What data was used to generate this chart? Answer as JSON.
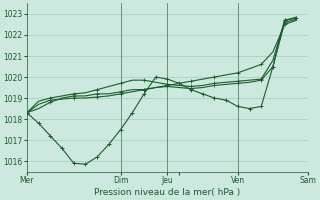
{
  "title": "Pression niveau de la mer( hPa )",
  "bg_color": "#cce8df",
  "grid_color": "#9ecfbf",
  "line_color": "#1a5c2a",
  "ylim": [
    1015.5,
    1023.5
  ],
  "yticks": [
    1016,
    1017,
    1018,
    1019,
    1020,
    1021,
    1022,
    1023
  ],
  "xlim": [
    0,
    24
  ],
  "xtick_pos": [
    0,
    8,
    12,
    13,
    18,
    24
  ],
  "xtick_lbl": [
    "Mer",
    "Dim",
    "Jeu",
    "",
    "Ven",
    "Sam"
  ],
  "vline_pos": [
    8,
    12,
    18,
    24
  ],
  "series": {
    "s1": [
      1018.3,
      1018.5,
      1018.8,
      1019.0,
      1019.1,
      1019.1,
      1019.2,
      1019.2,
      1019.3,
      1019.4,
      1019.4,
      1019.5,
      1019.6,
      1019.7,
      1019.8,
      1019.9,
      1020.0,
      1020.1,
      1020.2,
      1020.4,
      1020.6,
      1021.2,
      1022.5,
      1022.7
    ],
    "s2": [
      1018.3,
      1017.8,
      1017.2,
      1016.6,
      1015.9,
      1015.85,
      1016.2,
      1016.8,
      1017.5,
      1018.3,
      1019.2,
      1020.0,
      1019.9,
      1019.7,
      1019.4,
      1019.2,
      1019.0,
      1018.9,
      1018.6,
      1018.5,
      1018.6,
      1020.5,
      1022.7,
      1022.8
    ],
    "s3": [
      1018.3,
      1018.85,
      1019.0,
      1019.1,
      1019.2,
      1019.25,
      1019.4,
      1019.55,
      1019.7,
      1019.85,
      1019.85,
      1019.75,
      1019.65,
      1019.6,
      1019.55,
      1019.6,
      1019.7,
      1019.75,
      1019.8,
      1019.85,
      1019.9,
      1020.8,
      1022.7,
      1022.85
    ],
    "s4": [
      1018.3,
      1018.7,
      1018.9,
      1018.95,
      1019.0,
      1019.0,
      1019.05,
      1019.1,
      1019.2,
      1019.3,
      1019.4,
      1019.5,
      1019.55,
      1019.5,
      1019.45,
      1019.5,
      1019.6,
      1019.65,
      1019.7,
      1019.75,
      1019.85,
      1020.5,
      1022.6,
      1022.75
    ]
  }
}
